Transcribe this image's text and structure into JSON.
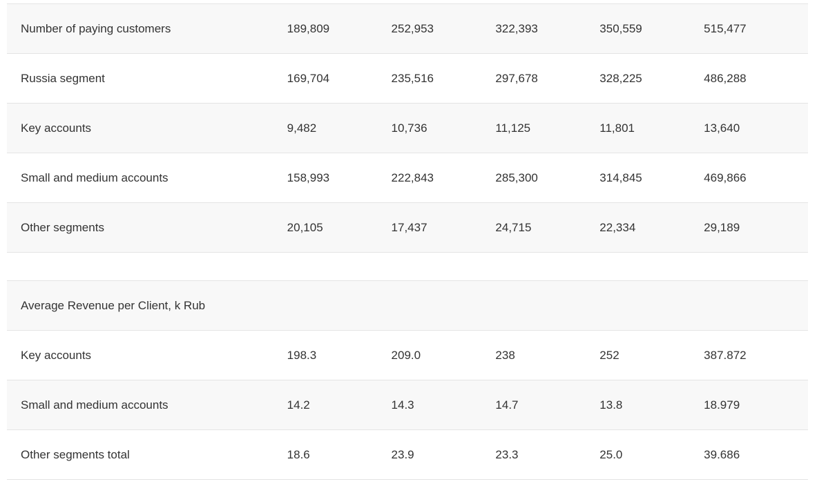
{
  "rows": [
    {
      "label": "Number of paying customers",
      "values": [
        "189,809",
        "252,953",
        "322,393",
        "350,559",
        "515,477"
      ]
    },
    {
      "label": "Russia segment",
      "values": [
        "169,704",
        "235,516",
        "297,678",
        "328,225",
        "486,288"
      ]
    },
    {
      "label": "Key accounts",
      "values": [
        "9,482",
        "10,736",
        "11,125",
        "11,801",
        "13,640"
      ]
    },
    {
      "label": "Small and medium accounts",
      "values": [
        "158,993",
        "222,843",
        "285,300",
        "314,845",
        "469,866"
      ]
    },
    {
      "label": "Other segments",
      "values": [
        "20,105",
        "17,437",
        "24,715",
        "22,334",
        "29,189"
      ]
    },
    {
      "label": "",
      "values": [
        "",
        "",
        "",
        "",
        ""
      ]
    },
    {
      "label": "Average Revenue per Client, k Rub",
      "values": [
        "",
        "",
        "",
        "",
        ""
      ]
    },
    {
      "label": "Key accounts",
      "values": [
        "198.3",
        "209.0",
        "238",
        "252",
        "387.872"
      ]
    },
    {
      "label": "Small and medium accounts",
      "values": [
        "14.2",
        "14.3",
        "14.7",
        "13.8",
        "18.979"
      ]
    },
    {
      "label": "Other segments total",
      "values": [
        "18.6",
        "23.9",
        "23.3",
        "25.0",
        "39.686"
      ]
    }
  ]
}
